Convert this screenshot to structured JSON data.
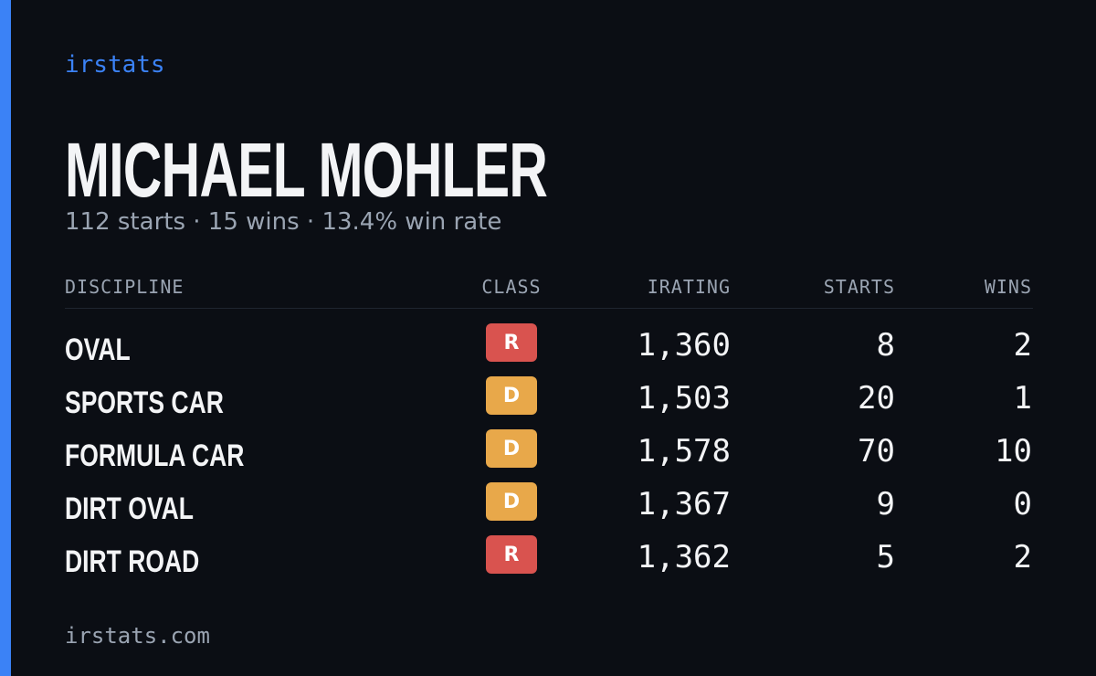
{
  "brand": "irstats",
  "driver": {
    "name": "MICHAEL MOHLER",
    "summary": "112 starts · 15 wins · 13.4% win rate"
  },
  "table": {
    "headers": [
      "DISCIPLINE",
      "CLASS",
      "IRATING",
      "STARTS",
      "WINS"
    ],
    "rows": [
      {
        "discipline": "OVAL",
        "class": "R",
        "class_color": "#d9534f",
        "irating": "1,360",
        "starts": 8,
        "wins": 2
      },
      {
        "discipline": "SPORTS CAR",
        "class": "D",
        "class_color": "#e8a84a",
        "irating": "1,503",
        "starts": 20,
        "wins": 1
      },
      {
        "discipline": "FORMULA CAR",
        "class": "D",
        "class_color": "#e8a84a",
        "irating": "1,578",
        "starts": 70,
        "wins": 10
      },
      {
        "discipline": "DIRT OVAL",
        "class": "D",
        "class_color": "#e8a84a",
        "irating": "1,367",
        "starts": 9,
        "wins": 0
      },
      {
        "discipline": "DIRT ROAD",
        "class": "R",
        "class_color": "#d9534f",
        "irating": "1,362",
        "starts": 5,
        "wins": 2
      }
    ]
  },
  "footer": "irstats.com"
}
